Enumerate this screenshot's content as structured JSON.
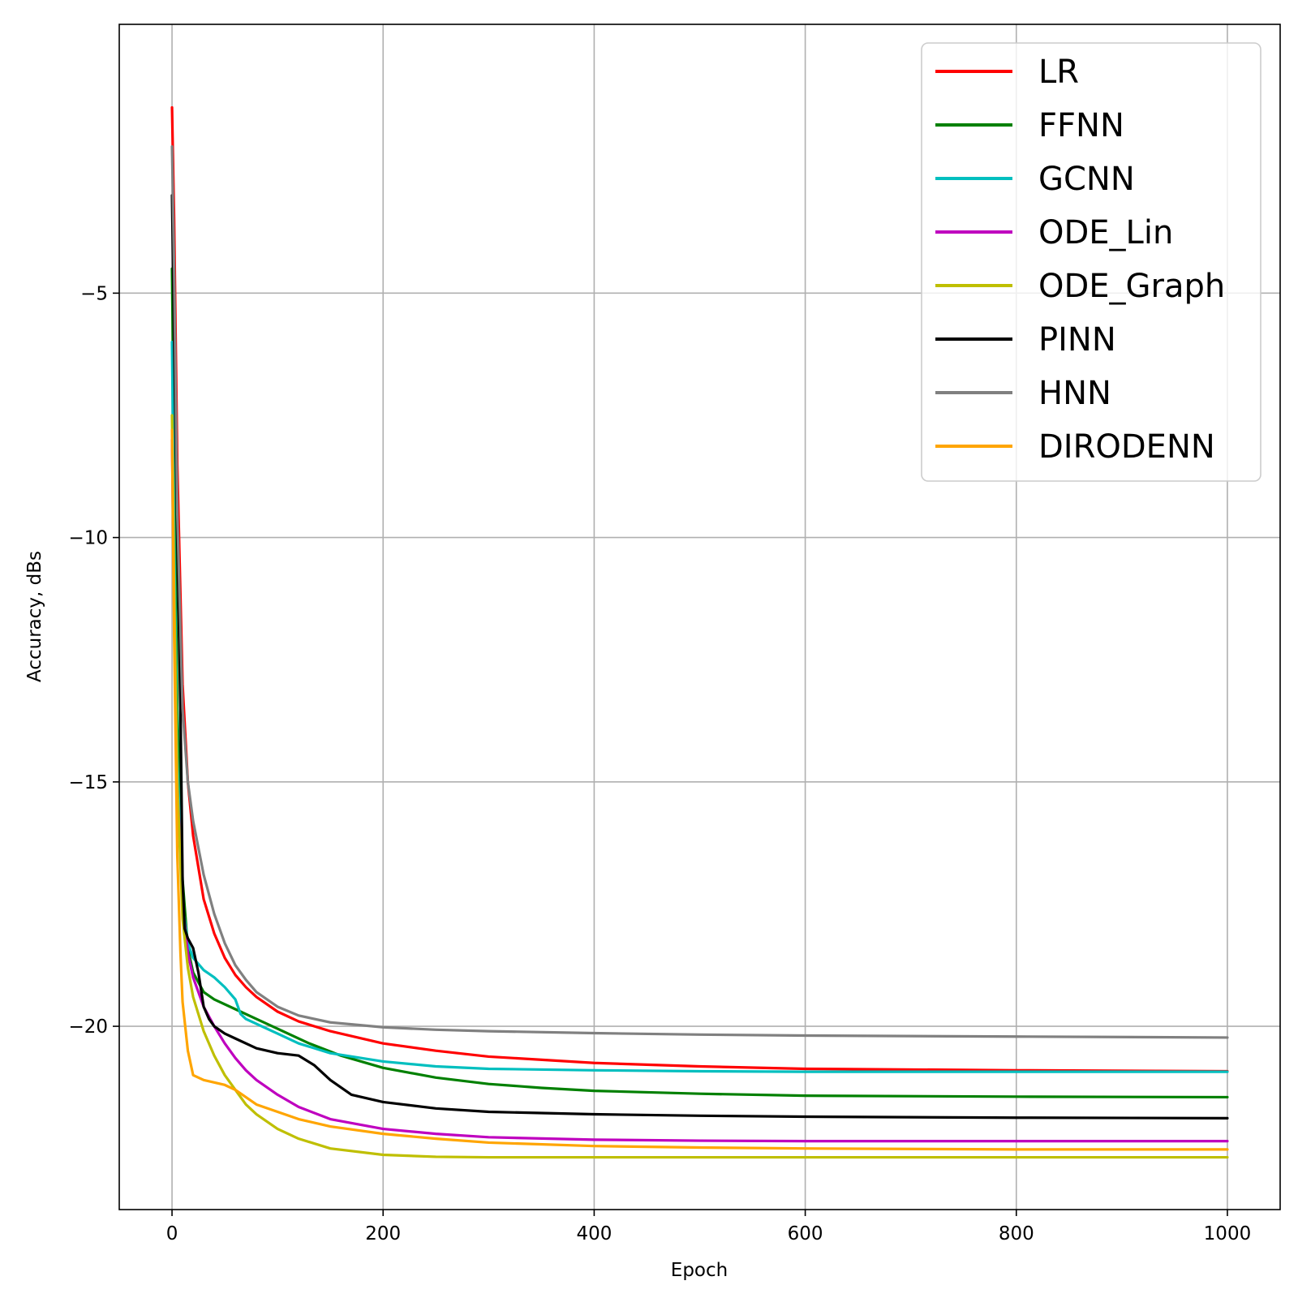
{
  "chart_data": {
    "type": "line",
    "title": "",
    "xlabel": "Epoch",
    "ylabel": "Accuracy, dBs",
    "xlim": [
      -50,
      1050
    ],
    "ylim": [
      -23.75,
      0.5
    ],
    "xticks": [
      0,
      200,
      400,
      600,
      800,
      1000
    ],
    "xtick_labels": [
      "0",
      "200",
      "400",
      "600",
      "800",
      "1000"
    ],
    "yticks": [
      -5,
      -10,
      -15,
      -20
    ],
    "ytick_labels": [
      "−5",
      "−10",
      "−15",
      "−20"
    ],
    "grid": true,
    "legend_position": "top-right",
    "series": [
      {
        "name": "LR",
        "color": "#ff0000",
        "x": [
          0,
          2,
          5,
          10,
          15,
          20,
          30,
          40,
          50,
          60,
          70,
          80,
          100,
          120,
          150,
          200,
          250,
          300,
          400,
          500,
          600,
          800,
          1000
        ],
        "y": [
          -1.2,
          -3.5,
          -8.5,
          -13.0,
          -15.0,
          -16.1,
          -17.4,
          -18.1,
          -18.6,
          -18.95,
          -19.2,
          -19.4,
          -19.7,
          -19.9,
          -20.1,
          -20.35,
          -20.5,
          -20.62,
          -20.75,
          -20.82,
          -20.87,
          -20.9,
          -20.92
        ]
      },
      {
        "name": "FFNN",
        "color": "#008000",
        "x": [
          0,
          2,
          5,
          10,
          15,
          20,
          30,
          40,
          60,
          80,
          100,
          130,
          160,
          200,
          250,
          300,
          350,
          400,
          500,
          600,
          800,
          1000
        ],
        "y": [
          -4.5,
          -8.5,
          -13.5,
          -17.0,
          -18.4,
          -18.9,
          -19.3,
          -19.45,
          -19.65,
          -19.85,
          -20.05,
          -20.35,
          -20.6,
          -20.85,
          -21.05,
          -21.18,
          -21.26,
          -21.32,
          -21.38,
          -21.42,
          -21.44,
          -21.45
        ]
      },
      {
        "name": "GCNN",
        "color": "#00bfbf",
        "x": [
          0,
          2,
          5,
          10,
          15,
          20,
          30,
          40,
          50,
          60,
          65,
          70,
          80,
          100,
          120,
          150,
          200,
          250,
          300,
          400,
          500,
          600,
          800,
          1000
        ],
        "y": [
          -6.0,
          -10.0,
          -14.5,
          -17.5,
          -18.3,
          -18.6,
          -18.85,
          -19.0,
          -19.2,
          -19.45,
          -19.75,
          -19.85,
          -19.95,
          -20.15,
          -20.35,
          -20.55,
          -20.72,
          -20.82,
          -20.87,
          -20.9,
          -20.92,
          -20.93,
          -20.93,
          -20.93
        ]
      },
      {
        "name": "ODE_Lin",
        "color": "#bf00bf",
        "x": [
          0,
          2,
          5,
          10,
          15,
          20,
          30,
          40,
          50,
          60,
          70,
          80,
          100,
          120,
          150,
          200,
          250,
          300,
          400,
          500,
          600,
          800,
          1000
        ],
        "y": [
          -8.0,
          -11.5,
          -15.0,
          -17.5,
          -18.5,
          -19.0,
          -19.6,
          -20.0,
          -20.35,
          -20.65,
          -20.9,
          -21.1,
          -21.4,
          -21.65,
          -21.9,
          -22.1,
          -22.2,
          -22.27,
          -22.32,
          -22.34,
          -22.35,
          -22.35,
          -22.35
        ]
      },
      {
        "name": "ODE_Graph",
        "color": "#bfbf00",
        "x": [
          0,
          2,
          5,
          10,
          15,
          20,
          30,
          40,
          50,
          60,
          70,
          80,
          100,
          120,
          150,
          200,
          250,
          300,
          400,
          500,
          600,
          800,
          1000
        ],
        "y": [
          -7.5,
          -11.0,
          -15.0,
          -17.8,
          -18.8,
          -19.4,
          -20.1,
          -20.6,
          -21.0,
          -21.3,
          -21.6,
          -21.8,
          -22.1,
          -22.3,
          -22.5,
          -22.63,
          -22.67,
          -22.68,
          -22.68,
          -22.68,
          -22.68,
          -22.68,
          -22.68
        ]
      },
      {
        "name": "PINN",
        "color": "#000000",
        "x": [
          0,
          2,
          5,
          8,
          10,
          12,
          15,
          20,
          25,
          30,
          35,
          40,
          50,
          60,
          80,
          100,
          120,
          135,
          150,
          170,
          200,
          250,
          300,
          400,
          500,
          600,
          800,
          1000
        ],
        "y": [
          -3.0,
          -6.0,
          -10.0,
          -13.5,
          -17.0,
          -18.0,
          -18.2,
          -18.4,
          -18.9,
          -19.6,
          -19.85,
          -20.0,
          -20.15,
          -20.25,
          -20.45,
          -20.55,
          -20.6,
          -20.8,
          -21.1,
          -21.4,
          -21.55,
          -21.68,
          -21.75,
          -21.8,
          -21.83,
          -21.85,
          -21.87,
          -21.88
        ]
      },
      {
        "name": "HNN",
        "color": "#808080",
        "x": [
          0,
          2,
          5,
          10,
          15,
          20,
          30,
          40,
          50,
          60,
          70,
          80,
          100,
          120,
          150,
          200,
          250,
          300,
          400,
          500,
          600,
          800,
          1000
        ],
        "y": [
          -2.0,
          -4.5,
          -9.5,
          -13.5,
          -15.0,
          -15.8,
          -16.9,
          -17.7,
          -18.3,
          -18.75,
          -19.05,
          -19.3,
          -19.6,
          -19.78,
          -19.92,
          -20.02,
          -20.07,
          -20.1,
          -20.14,
          -20.17,
          -20.19,
          -20.21,
          -20.23
        ]
      },
      {
        "name": "DIRODENN",
        "color": "#ffa500",
        "x": [
          0,
          2,
          5,
          8,
          10,
          15,
          20,
          25,
          30,
          40,
          50,
          60,
          70,
          80,
          100,
          120,
          150,
          200,
          250,
          300,
          400,
          500,
          600,
          800,
          1000
        ],
        "y": [
          -7.8,
          -12.0,
          -16.5,
          -18.5,
          -19.5,
          -20.5,
          -21.0,
          -21.05,
          -21.1,
          -21.15,
          -21.2,
          -21.3,
          -21.45,
          -21.6,
          -21.75,
          -21.9,
          -22.05,
          -22.2,
          -22.3,
          -22.38,
          -22.45,
          -22.48,
          -22.5,
          -22.52,
          -22.52
        ]
      }
    ]
  }
}
